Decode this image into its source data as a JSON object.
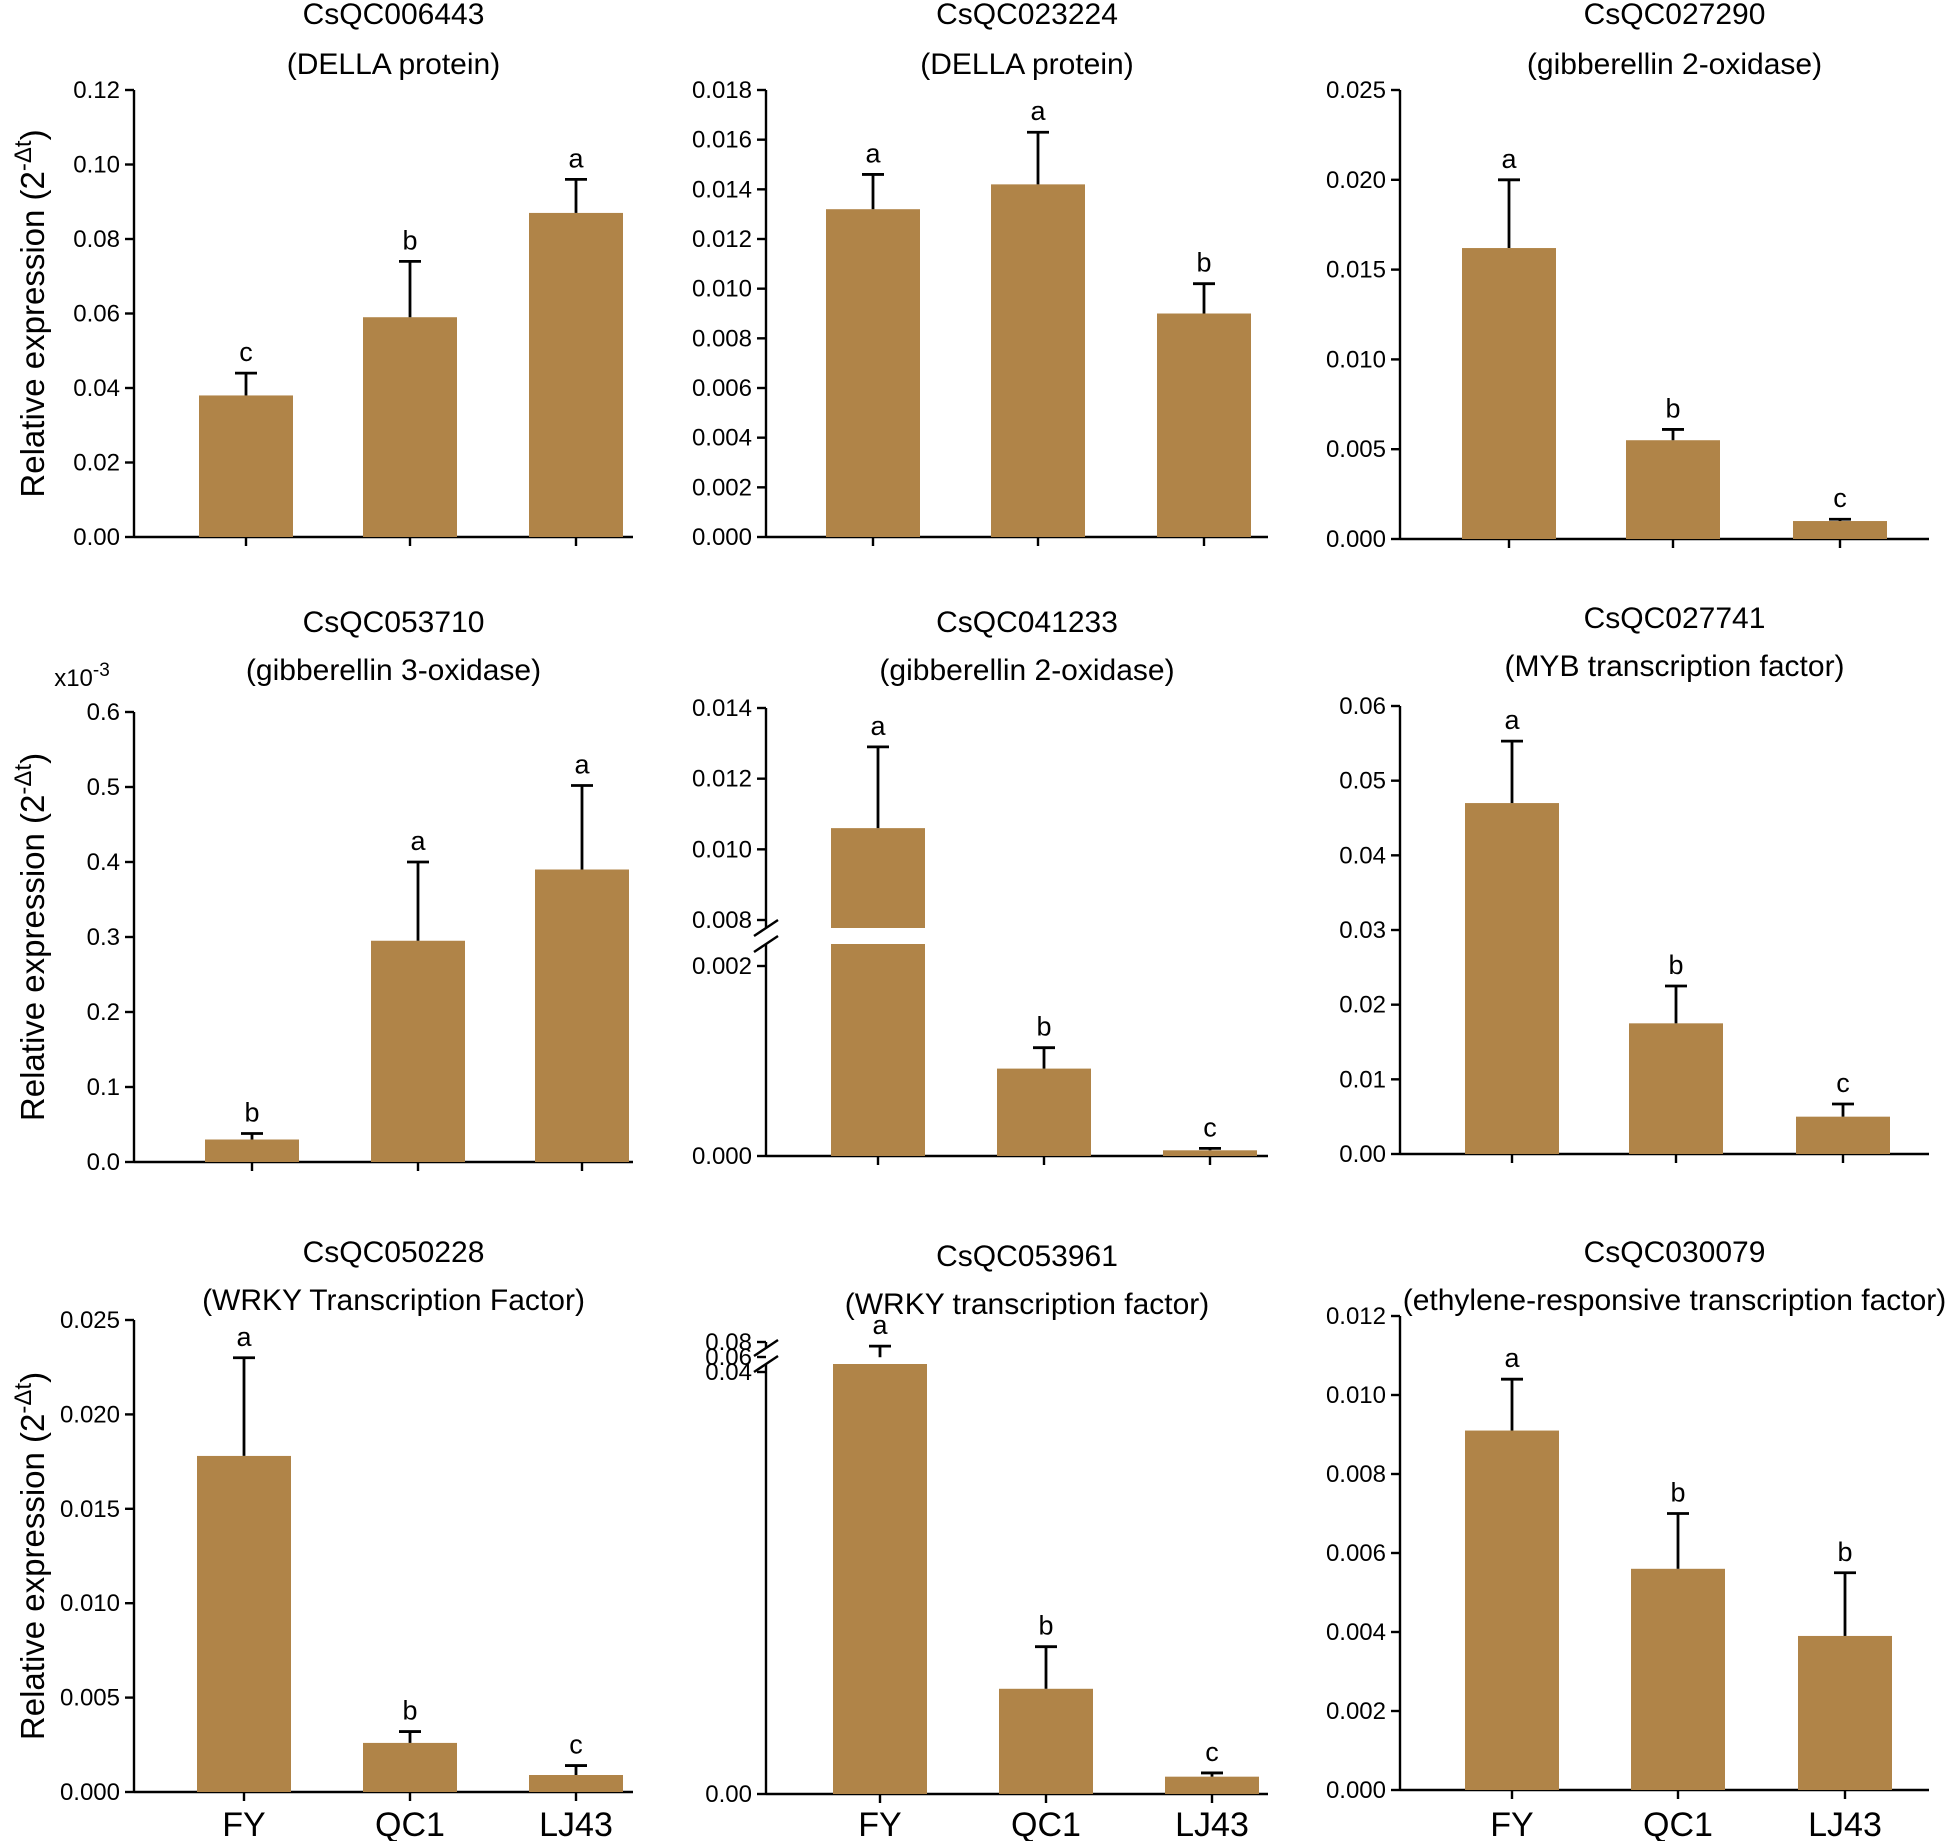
{
  "figure": {
    "categories": [
      "FY",
      "QC1",
      "LJ43"
    ],
    "y_axis_label": "Relative expression (2",
    "y_axis_label_exp": "-Δt",
    "y_axis_label_close": ")",
    "bar_color": "#b08448"
  },
  "chart_data": [
    {
      "type": "bar",
      "gene": "CsQC006443",
      "annotation": "(DELLA protein)",
      "categories": [
        "FY",
        "QC1",
        "LJ43"
      ],
      "values": [
        0.038,
        0.059,
        0.087
      ],
      "errors": [
        0.006,
        0.015,
        0.009
      ],
      "letters": [
        "c",
        "b",
        "a"
      ],
      "ylim": [
        0,
        0.12
      ],
      "yticks": [
        0,
        0.02,
        0.04,
        0.06,
        0.08,
        0.1,
        0.12
      ],
      "decimals": 2
    },
    {
      "type": "bar",
      "gene": "CsQC023224",
      "annotation": "(DELLA protein)",
      "categories": [
        "FY",
        "QC1",
        "LJ43"
      ],
      "values": [
        0.0132,
        0.0142,
        0.009
      ],
      "errors": [
        0.0014,
        0.0021,
        0.0012
      ],
      "letters": [
        "a",
        "a",
        "b"
      ],
      "ylim": [
        0,
        0.018
      ],
      "yticks": [
        0,
        0.002,
        0.004,
        0.006,
        0.008,
        0.01,
        0.012,
        0.014,
        0.016,
        0.018
      ],
      "decimals": 3
    },
    {
      "type": "bar",
      "gene": "CsQC027290",
      "annotation": "(gibberellin 2-oxidase)",
      "categories": [
        "FY",
        "QC1",
        "LJ43"
      ],
      "values": [
        0.0162,
        0.0055,
        0.001
      ],
      "errors": [
        0.0038,
        0.0006,
        0.0001
      ],
      "letters": [
        "a",
        "b",
        "c"
      ],
      "ylim": [
        0,
        0.025
      ],
      "yticks": [
        0,
        0.005,
        0.01,
        0.015,
        0.02,
        0.025
      ],
      "decimals": 3
    },
    {
      "type": "bar",
      "gene": "CsQC053710",
      "annotation": "(gibberellin 3-oxidase)",
      "categories": [
        "FY",
        "QC1",
        "LJ43"
      ],
      "values": [
        0.03,
        0.295,
        0.39
      ],
      "errors": [
        0.008,
        0.105,
        0.112
      ],
      "letters": [
        "b",
        "a",
        "a"
      ],
      "ylim": [
        0,
        0.6
      ],
      "yticks": [
        0,
        0.1,
        0.2,
        0.3,
        0.4,
        0.5,
        0.6
      ],
      "decimals": 1,
      "multiplier_base": "x10",
      "multiplier_exp": "-3"
    },
    {
      "type": "bar",
      "gene": "CsQC041233",
      "annotation": "(gibberellin 2-oxidase)",
      "categories": [
        "FY",
        "QC1",
        "LJ43"
      ],
      "values": [
        0.0106,
        0.00092,
        6e-05
      ],
      "errors": [
        0.0023,
        0.00022,
        2e-05
      ],
      "letters": [
        "a",
        "b",
        "c"
      ],
      "broken_axis": true,
      "lower_range": [
        0,
        0.002
      ],
      "upper_range": [
        0.008,
        0.014
      ],
      "yticks_lower": [
        0,
        0.002
      ],
      "yticks_upper": [
        0.008,
        0.01,
        0.012,
        0.014
      ],
      "decimals": 3
    },
    {
      "type": "bar",
      "gene": "CsQC027741",
      "annotation": "(MYB transcription factor)",
      "categories": [
        "FY",
        "QC1",
        "LJ43"
      ],
      "values": [
        0.047,
        0.0175,
        0.005
      ],
      "errors": [
        0.0083,
        0.005,
        0.0017
      ],
      "letters": [
        "a",
        "b",
        "c"
      ],
      "ylim": [
        0,
        0.06
      ],
      "yticks": [
        0,
        0.01,
        0.02,
        0.03,
        0.04,
        0.05,
        0.06
      ],
      "decimals": 2
    },
    {
      "type": "bar",
      "gene": "CsQC050228",
      "annotation": "(WRKY Transcription Factor)",
      "categories": [
        "FY",
        "QC1",
        "LJ43"
      ],
      "values": [
        0.0178,
        0.0026,
        0.0009
      ],
      "errors": [
        0.0052,
        0.0006,
        0.0005
      ],
      "letters": [
        "a",
        "b",
        "c"
      ],
      "ylim": [
        0,
        0.025
      ],
      "yticks": [
        0,
        0.005,
        0.01,
        0.015,
        0.02,
        0.025
      ],
      "decimals": 3
    },
    {
      "type": "bar",
      "gene": "CsQC053961",
      "annotation": "(WRKY transcription factor)",
      "categories": [
        "FY",
        "QC1",
        "LJ43"
      ],
      "values": [
        0.0597,
        0.0085,
        0.0014
      ],
      "errors": [
        0.0148,
        0.0034,
        0.0003
      ],
      "letters": [
        "a",
        "b",
        "c"
      ],
      "broken_axis": true,
      "lower_range": [
        0,
        0.0286
      ],
      "upper_range": [
        0.04,
        0.08
      ],
      "yticks_lower": [
        0
      ],
      "yticks_upper": [
        0.04,
        0.06,
        0.08
      ],
      "decimals": 2
    },
    {
      "type": "bar",
      "gene": "CsQC030079",
      "annotation": "(ethylene-responsive transcription factor)",
      "categories": [
        "FY",
        "QC1",
        "LJ43"
      ],
      "values": [
        0.0091,
        0.0056,
        0.0039
      ],
      "errors": [
        0.0013,
        0.0014,
        0.0016
      ],
      "letters": [
        "a",
        "b",
        "b"
      ],
      "ylim": [
        0,
        0.012
      ],
      "yticks": [
        0,
        0.002,
        0.004,
        0.006,
        0.008,
        0.01,
        0.012
      ],
      "decimals": 3
    }
  ]
}
